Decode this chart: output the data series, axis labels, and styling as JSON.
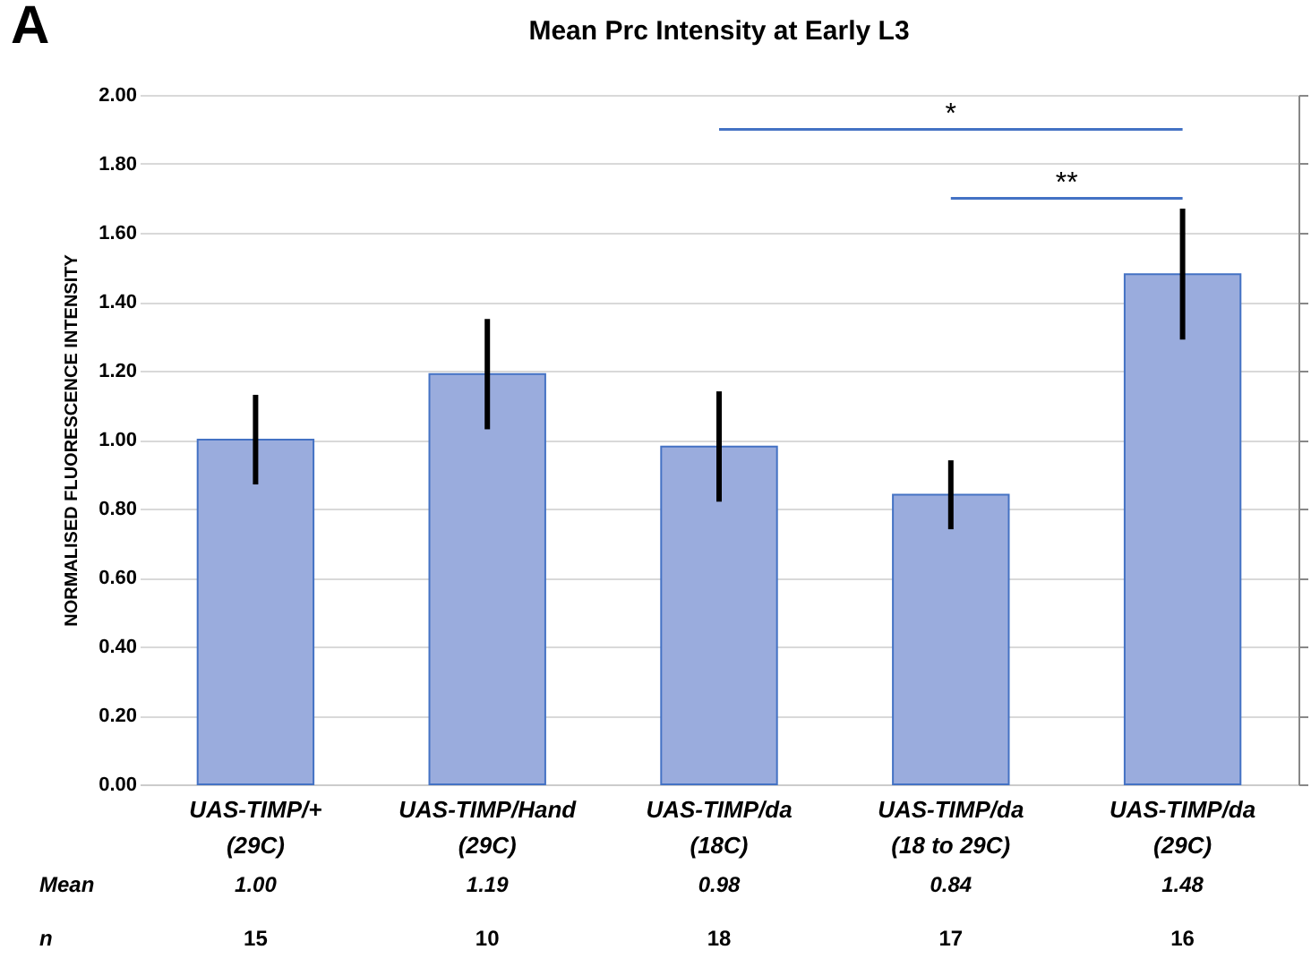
{
  "chart_data": {
    "type": "bar",
    "title": "Mean Prc Intensity at Early L3",
    "ylabel": "NORMALISED FLUORESCENCE INTENSITY",
    "categories": [
      "UAS-TIMP/+\n(29C)",
      "UAS-TIMP/Hand\n(29C)",
      "UAS-TIMP/da\n(18C)",
      "UAS-TIMP/da\n(18 to 29C)",
      "UAS-TIMP/da\n(29C)"
    ],
    "values": [
      1.0,
      1.19,
      0.98,
      0.84,
      1.48
    ],
    "errors": [
      0.13,
      0.16,
      0.16,
      0.1,
      0.19
    ],
    "color": "#9aacdd",
    "ylim": [
      0,
      2
    ],
    "yticks": [
      {
        "value": 0,
        "label": "0.00"
      },
      {
        "value": 0.2,
        "label": "0.20"
      },
      {
        "value": 0.4,
        "label": "0.40"
      },
      {
        "value": 0.6,
        "label": "0.60"
      },
      {
        "value": 0.8,
        "label": "0.80"
      },
      {
        "value": 1,
        "label": "1.00"
      },
      {
        "value": 1.2,
        "label": "1.20"
      },
      {
        "value": 1.4,
        "label": "1.40"
      },
      {
        "value": 1.6,
        "label": "1.60"
      },
      {
        "value": 1.8,
        "label": "1.80"
      },
      {
        "value": 2,
        "label": "2.00"
      }
    ],
    "grid": "y",
    "value_labels": [
      "1.00",
      "1.19",
      "0.98",
      "0.84",
      "1.48"
    ],
    "annotations": [
      "A",
      "Mean",
      "n",
      "*",
      "**",
      "15",
      "10",
      "18",
      "17",
      "16"
    ]
  }
}
